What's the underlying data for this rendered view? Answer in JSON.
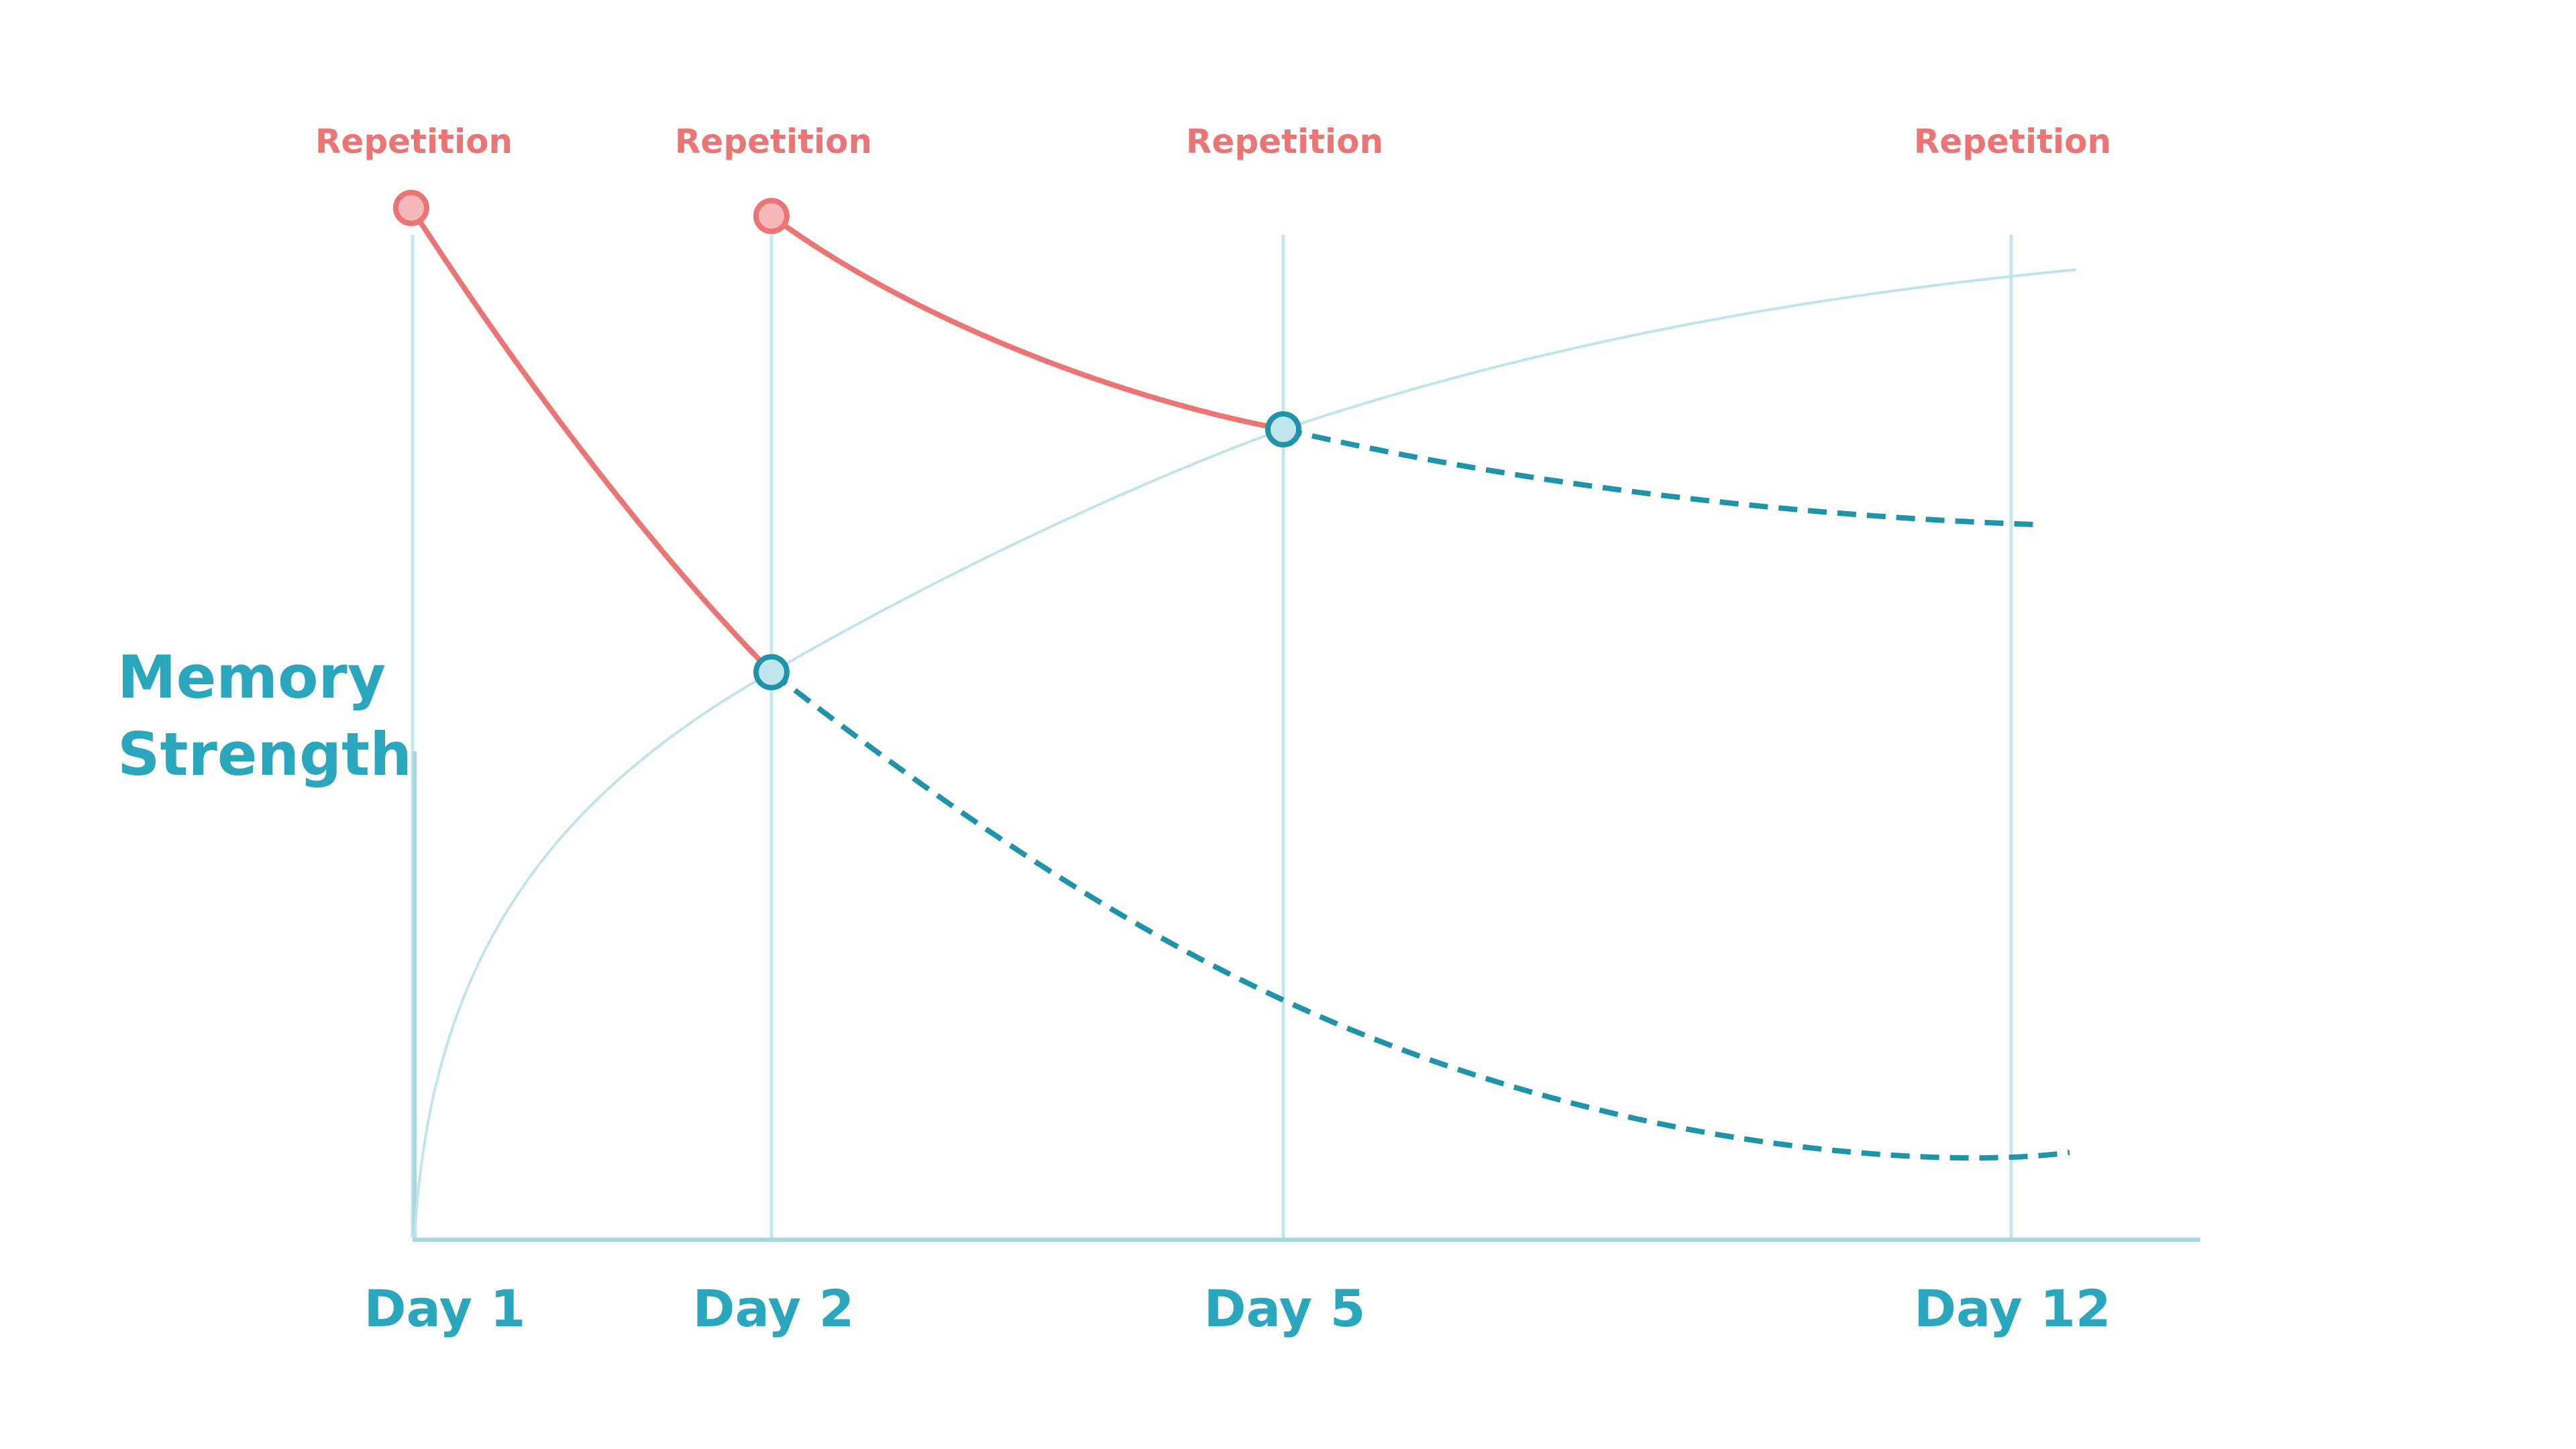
{
  "diagram": {
    "y_axis_label_lines": [
      "Memory",
      "Strength"
    ],
    "repetition_label": "Repetition",
    "days": [
      "Day 1",
      "Day 2",
      "Day 5",
      "Day 12"
    ],
    "colors": {
      "repetition": "#eb7475",
      "memory": "#2aa6bd",
      "dashed": "#1f93a9",
      "gridline": "#c4e5ec"
    }
  }
}
